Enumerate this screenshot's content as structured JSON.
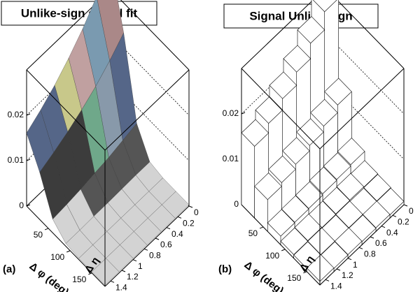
{
  "chart_data": [
    {
      "type": "surface",
      "title": "Unlike-sign signal fit",
      "panel_label": "(a)",
      "xlabel": "Δ φ (deg)",
      "ylabel": "Δ η",
      "x": [
        0,
        30,
        60,
        90,
        120,
        150,
        180
      ],
      "y": [
        0,
        0.25,
        0.5,
        0.75,
        1,
        1.25,
        1.5
      ],
      "z": [
        [
          0.0363,
          0.0234,
          0.0064,
          0.0009,
          0.0003,
          0.0003,
          0.0003
        ],
        [
          0.0314,
          0.0202,
          0.0056,
          0.0009,
          0.0003,
          0.0003,
          0.0003
        ],
        [
          0.0272,
          0.0175,
          0.0048,
          0.0008,
          0.0003,
          0.0003,
          0.0003
        ],
        [
          0.0237,
          0.0153,
          0.0043,
          0.0007,
          0.0003,
          0.0003,
          0.0003
        ],
        [
          0.0207,
          0.0134,
          0.0037,
          0.0007,
          0.0003,
          0.0003,
          0.0003
        ],
        [
          0.0182,
          0.0118,
          0.0033,
          0.0006,
          0.0003,
          0.0003,
          0.0003
        ],
        [
          0.0161,
          0.0104,
          0.003,
          0.0006,
          0.0003,
          0.0003,
          0.0003
        ]
      ],
      "xlim": [
        0,
        180
      ],
      "ylim": [
        0,
        1.5
      ],
      "zlim": [
        0,
        0.03
      ],
      "xticks": [
        50,
        100,
        150
      ],
      "yticks": [
        0,
        0.2,
        0.4,
        0.6,
        0.8,
        1,
        1.2,
        1.4
      ],
      "zticks": [
        0,
        0.01,
        0.02
      ],
      "palette": [
        "#d3d3d3",
        "#555555",
        "#a0a0a0",
        "#3c3c3c",
        "#6fa88a",
        "#8899aa",
        "#556688",
        "#c8c88a",
        "#9a8a9a",
        "#c0a0a0",
        "#7a9ab0",
        "#d8c890",
        "#aa8888",
        "#ff0000",
        "#ff00ff",
        "#00ff00",
        "#000000"
      ]
    },
    {
      "type": "lego",
      "title": "Signal Unlike-sign",
      "panel_label": "(b)",
      "xlabel": "Δ φ (deg)",
      "ylabel": "Δ η",
      "x": [
        15,
        45,
        75,
        105,
        135,
        165
      ],
      "y": [
        0.125,
        0.375,
        0.625,
        0.875,
        1.125,
        1.375
      ],
      "z": [
        [
          0.0307,
          0.0131,
          0.0029,
          0.0009,
          0.0008,
          0.0007
        ],
        [
          0.0267,
          0.0114,
          0.0026,
          0.001,
          0.0007,
          0.0008
        ],
        [
          0.0233,
          0.0101,
          0.0024,
          0.0009,
          0.0008,
          0.0007
        ],
        [
          0.0204,
          0.0089,
          0.0021,
          0.0008,
          0.0007,
          0.0008
        ],
        [
          0.0179,
          0.0078,
          0.002,
          0.0009,
          0.0008,
          0.0007
        ],
        [
          0.0158,
          0.007,
          0.0019,
          0.0008,
          0.0007,
          0.0008
        ]
      ],
      "xlim": [
        0,
        180
      ],
      "ylim": [
        0,
        1.5
      ],
      "zlim": [
        0,
        0.03
      ],
      "xticks": [
        50,
        100,
        150
      ],
      "yticks": [
        0,
        0.2,
        0.4,
        0.6,
        0.8,
        1,
        1.2,
        1.4
      ],
      "zticks": [
        0,
        0.01,
        0.02
      ],
      "color": "#ffffff"
    }
  ]
}
